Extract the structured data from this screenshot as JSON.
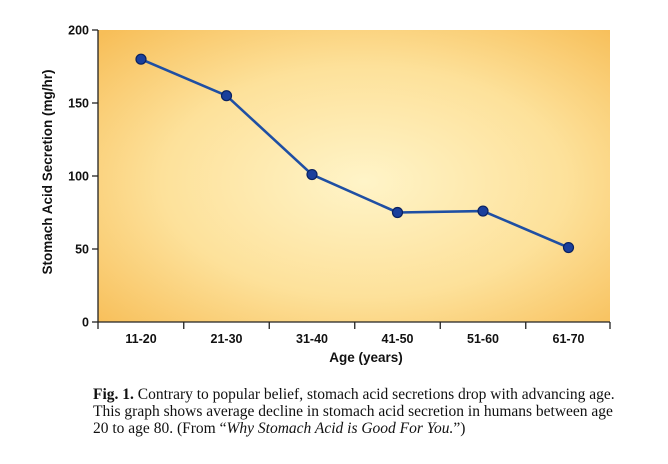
{
  "chart_data": {
    "type": "line",
    "title": "",
    "xlabel": "Age (years)",
    "ylabel": "Stomach Acid Secretion (mg/hr)",
    "categories": [
      "11-20",
      "21-30",
      "31-40",
      "41-50",
      "51-60",
      "61-70"
    ],
    "values": [
      180,
      155,
      101,
      75,
      76,
      51
    ],
    "yticks": [
      0,
      50,
      100,
      150,
      200
    ],
    "ylim": [
      0,
      200
    ],
    "grid": false,
    "colors": {
      "line": "#1f4fa3",
      "marker": "#1a3f9c",
      "background_inner": "#fff3c4",
      "background_outer": "#f8c35e"
    }
  },
  "caption": {
    "label": "Fig. 1.",
    "text": "Contrary to popular belief, stomach acid secretions drop with advancing age. This graph shows average decline in stomach acid secretion in humans between age 20 to age 80. (From ",
    "source_open_quote": "“",
    "source_title": "Why Stomach Acid is Good For You.",
    "source_close": "”)"
  }
}
